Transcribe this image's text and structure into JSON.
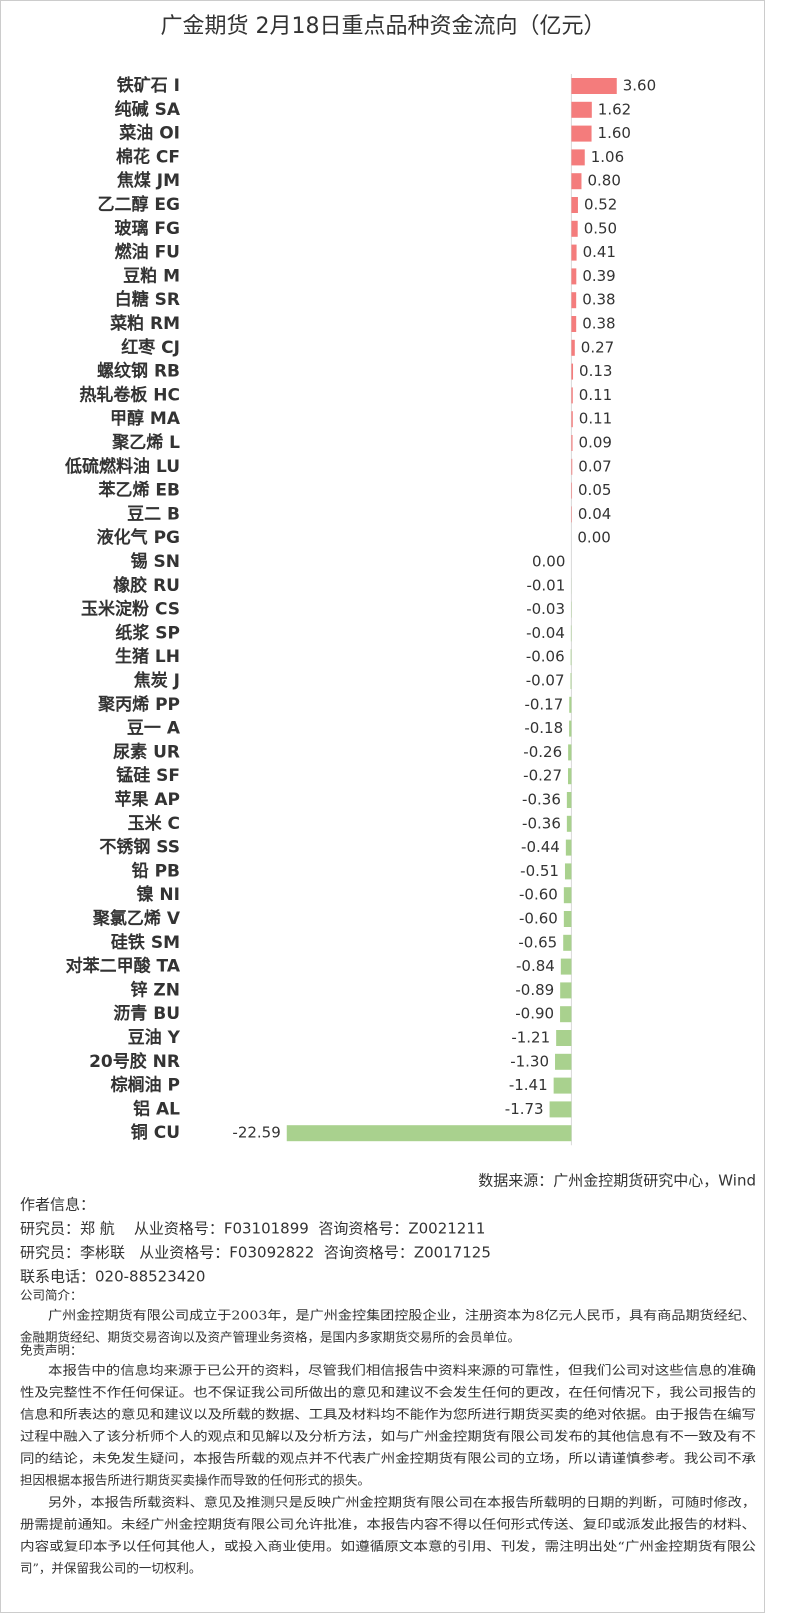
{
  "chart_data": {
    "type": "bar",
    "orientation": "horizontal",
    "title": "广金期货 2月18日重点品种资金流向（亿元）",
    "categories": [
      "铁矿石 I",
      "纯碱 SA",
      "菜油 OI",
      "棉花 CF",
      "焦煤 JM",
      "乙二醇 EG",
      "玻璃 FG",
      "燃油 FU",
      "豆粕 M",
      "白糖 SR",
      "菜粕 RM",
      "红枣 CJ",
      "螺纹钢 RB",
      "热轧卷板 HC",
      "甲醇 MA",
      "聚乙烯 L",
      "低硫燃料油 LU",
      "苯乙烯 EB",
      "豆二 B",
      "液化气 PG",
      "锡 SN",
      "橡胶 RU",
      "玉米淀粉 CS",
      "纸浆 SP",
      "生猪 LH",
      "焦炭 J",
      "聚丙烯 PP",
      "豆一 A",
      "尿素 UR",
      "锰硅 SF",
      "苹果 AP",
      "玉米 C",
      "不锈钢 SS",
      "铅 PB",
      "镍 NI",
      "聚氯乙烯 V",
      "硅铁 SM",
      "对苯二甲酸 TA",
      "锌 ZN",
      "沥青 BU",
      "豆油 Y",
      "20号胶 NR",
      "棕榈油 P",
      "铝 AL",
      "铜 CU"
    ],
    "values": [
      3.6,
      1.62,
      1.6,
      1.06,
      0.8,
      0.52,
      0.5,
      0.41,
      0.39,
      0.38,
      0.38,
      0.27,
      0.13,
      0.11,
      0.11,
      0.09,
      0.07,
      0.05,
      0.04,
      0,
      0,
      -0.01,
      -0.03,
      -0.04,
      -0.06,
      -0.07,
      -0.17,
      -0.18,
      -0.26,
      -0.27,
      -0.36,
      -0.36,
      -0.44,
      -0.51,
      -0.6,
      -0.6,
      -0.65,
      -0.84,
      -0.89,
      -0.9,
      -1.21,
      -1.3,
      -1.41,
      -1.73,
      -22.59
    ],
    "value_labels": [
      "3.60",
      "1.62",
      "1.60",
      "1.06",
      "0.80",
      "0.52",
      "0.50",
      "0.41",
      "0.39",
      "0.38",
      "0.38",
      "0.27",
      "0.13",
      "0.11",
      "0.11",
      "0.09",
      "0.07",
      "0.05",
      "0.04",
      "0.00",
      "0.00",
      "-0.01",
      "-0.03",
      "-0.04",
      "-0.06",
      "-0.07",
      "-0.17",
      "-0.18",
      "-0.26",
      "-0.27",
      "-0.36",
      "-0.36",
      "-0.44",
      "-0.51",
      "-0.60",
      "-0.60",
      "-0.65",
      "-0.84",
      "-0.89",
      "-0.90",
      "-1.21",
      "-1.30",
      "-1.41",
      "-1.73",
      "-22.59"
    ],
    "xlim": [
      -24,
      12
    ],
    "positive_color": "#f47c7c",
    "negative_color": "#a9d18e"
  },
  "footer": {
    "source": "数据来源：广州金控期货研究中心，Wind",
    "author_heading": "作者信息：",
    "authors": [
      "研究员：郑 航    从业资格号：F03101899  咨询资格号：Z0021211",
      "研究员：李彬联   从业资格号：F03092822  咨询资格号：Z0017125"
    ],
    "phone": "联系电话：020-88523420",
    "intro_heading": "公司简介：",
    "intro_lines": [
      "广州金控期货有限公司成立于2003年，是广州金控集团控股企业，注册资本为8亿元人民币，具有商品期货经纪、",
      "金融期货经纪、期货交易咨询以及资产管理业务资格，是国内多家期货交易所的会员单位。"
    ],
    "disclaimer_heading": "免责声明：",
    "disclaimer_lines": [
      "本报告中的信息均来源于已公开的资料，尽管我们相信报告中资料来源的可靠性，但我们公司对这些信息的准确",
      "性及完整性不作任何保证。也不保证我公司所做出的意见和建议不会发生任何的更改，在任何情况下，我公司报告的",
      "信息和所表达的意见和建议以及所载的数据、工具及材料均不能作为您所进行期货买卖的绝对依据。由于报告在编写",
      "过程中融入了该分析师个人的观点和见解以及分析方法，如与广州金控期货有限公司发布的其他信息有不一致及有不",
      "同的结论，未免发生疑问，本报告所载的观点并不代表广州金控期货有限公司的立场，所以请谨慎参考。我公司不承",
      "担因根据本报告所进行期货买卖操作而导致的任何形式的损失。",
      "另外，本报告所载资料、意见及推测只是反映广州金控期货有限公司在本报告所载明的日期的判断，可随时修改，",
      "册需提前通知。未经广州金控期货有限公司允许批准，本报告内容不得以任何形式传送、复印或派发此报告的材料、",
      "内容或复印本予以任何其他人，或投入商业使用。如遵循原文本意的引用、刊发，需注明出处“广州金控期货有限公",
      "司”，并保留我公司的一切权利。"
    ]
  }
}
